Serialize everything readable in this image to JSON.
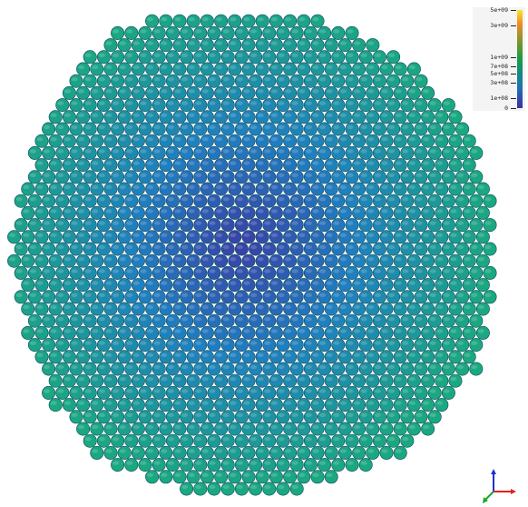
{
  "legend": {
    "labels": [
      "5e+09",
      "3e+09",
      "1e+09",
      "7e+08",
      "5e+08",
      "3e+08",
      "1e+08",
      "0"
    ],
    "colors": [
      "#f7e82b",
      "#f08a24",
      "#1e9e3a",
      "#0f8f7a",
      "#1f6fb8",
      "#3b2fa0"
    ]
  },
  "packing": {
    "center_color": "#3a3fa6",
    "mid_color": "#1f7fc0",
    "edge_color": "#1aa880",
    "outline_color": "#0b4a5a"
  },
  "triad": {
    "x_color": "#e02020",
    "y_color": "#1aa82a",
    "z_color": "#2030d0"
  }
}
